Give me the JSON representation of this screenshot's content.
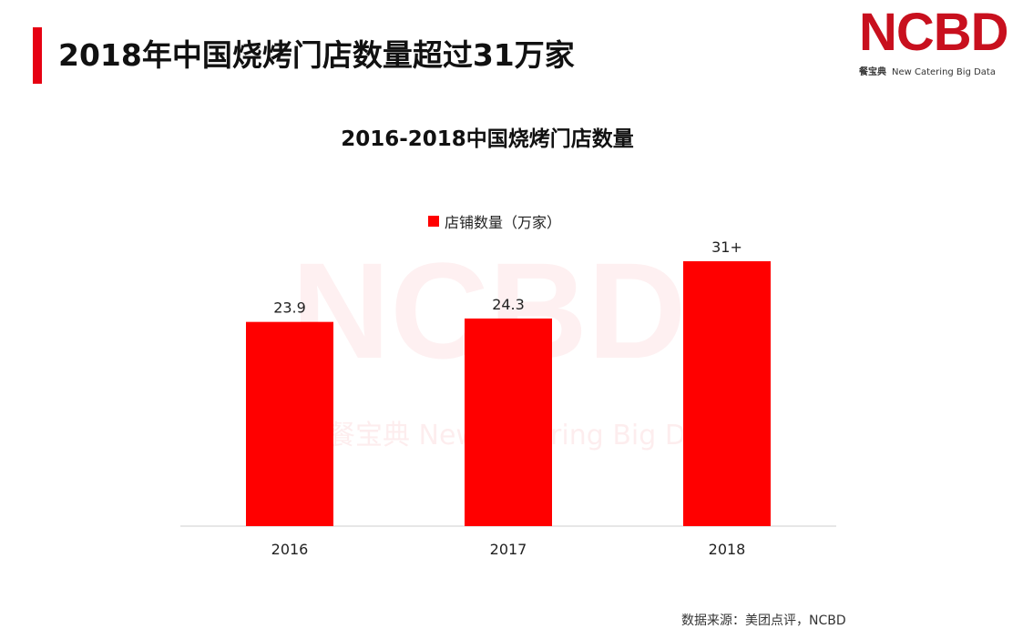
{
  "header": {
    "title": "2018年中国烧烤门店数量超过31万家",
    "accent_color": "#e60012"
  },
  "logo": {
    "word": "NCBD",
    "tag_zh": "餐宝典",
    "tag_en": "New Catering Big Data",
    "color": "#c8101e"
  },
  "watermark": {
    "big": "NCBD",
    "small": "餐宝典  New Catering Big Data"
  },
  "chart_data": {
    "type": "bar",
    "title": "2016-2018中国烧烤门店数量",
    "categories": [
      "2016",
      "2017",
      "2018"
    ],
    "series": [
      {
        "name": "店铺数量（万家）",
        "values": [
          23.9,
          24.3,
          31
        ],
        "labels": [
          "23.9",
          "24.3",
          "31+"
        ],
        "color": "#ff0000"
      }
    ],
    "xlabel": "",
    "ylabel": "",
    "y_axis_visible": false,
    "ylim": [
      0,
      35
    ],
    "grid": false,
    "legend_position": "top-center"
  },
  "footer": {
    "source": "数据来源：美团点评，NCBD"
  }
}
